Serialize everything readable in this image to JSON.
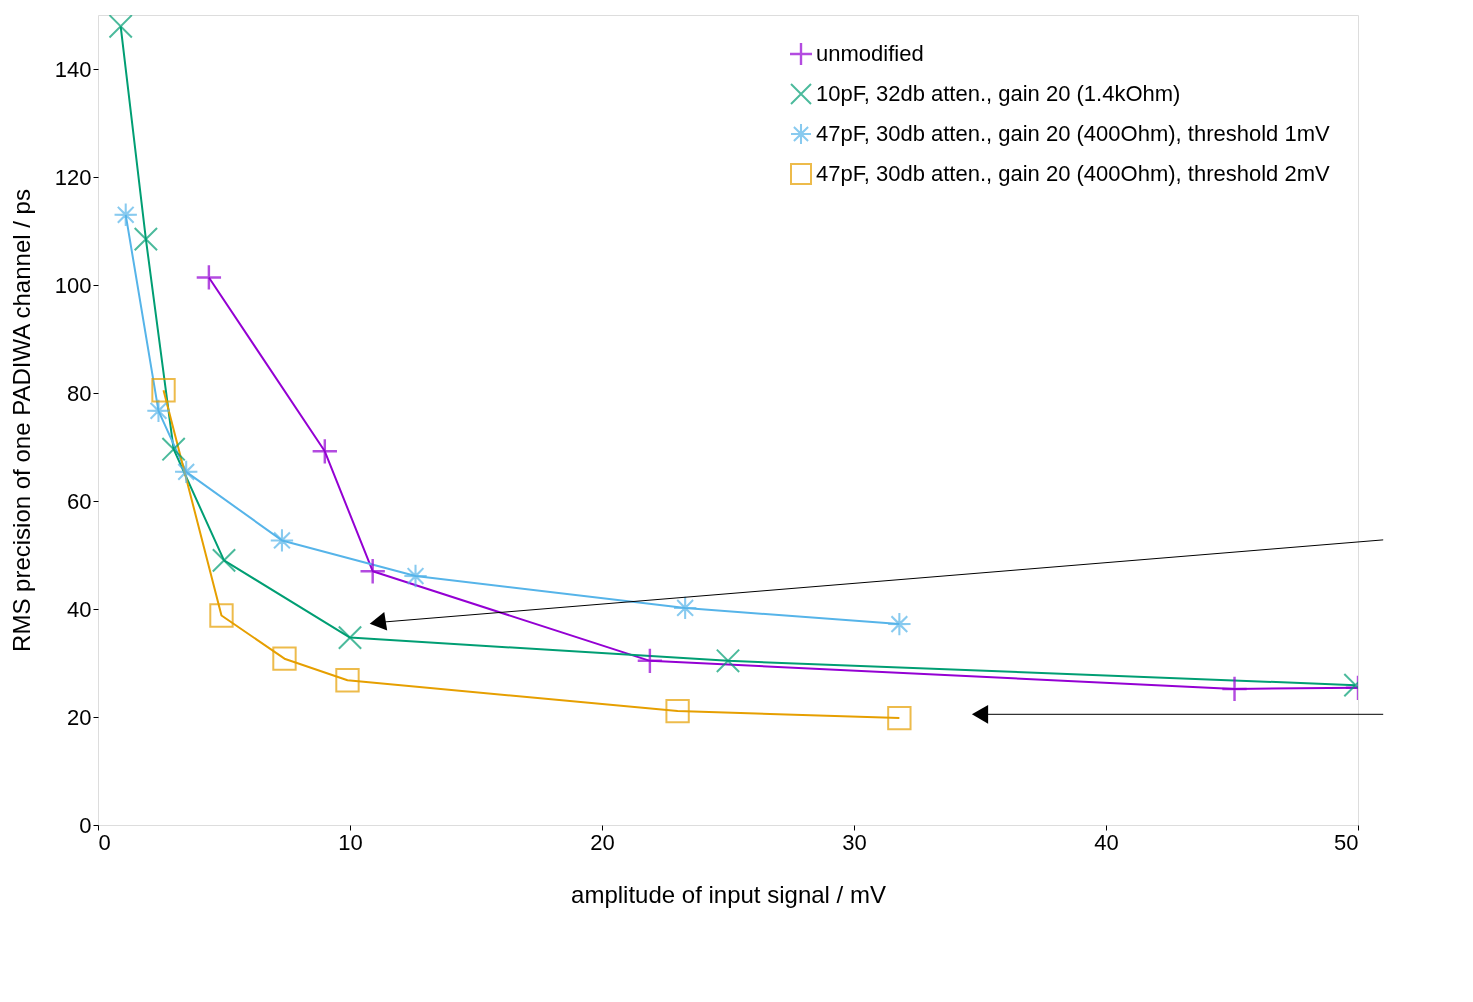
{
  "chart_data": {
    "type": "line",
    "xlabel": "amplitude of input signal / mV",
    "ylabel": "RMS precision of one PADIWA channel / ps",
    "xlim": [
      0,
      50
    ],
    "xticks": [
      0,
      10,
      20,
      30,
      40,
      50
    ],
    "ylim": [
      0,
      150
    ],
    "yticks": [
      0,
      20,
      40,
      60,
      80,
      100,
      120,
      140
    ],
    "grid": false,
    "legend": "top right",
    "series": [
      {
        "name": "unmodified",
        "color": "#9400d3",
        "marker": "cross",
        "x": [
          4.4,
          9.0,
          10.9,
          21.9,
          45.1,
          50
        ],
        "values": [
          101.4,
          69.2,
          47.0,
          30.4,
          25.2,
          25.4
        ]
      },
      {
        "name": "10pF, 32db atten., gain 20 (1.4kOhm)",
        "color": "#009e73",
        "marker": "x",
        "x": [
          0.9,
          1.9,
          3.0,
          5.0,
          10.0,
          25.0,
          49.9
        ],
        "values": [
          147.9,
          108.5,
          69.6,
          49.0,
          34.7,
          30.4,
          25.9
        ]
      },
      {
        "name": "47pF, 30db atten., gain 20 (400Ohm), threshold 1mV",
        "color": "#56b4e9",
        "marker": "star",
        "x": [
          1.1,
          2.4,
          3.5,
          7.3,
          12.6,
          23.3,
          31.8
        ],
        "values": [
          113.0,
          76.7,
          65.4,
          52.7,
          46.1,
          40.2,
          37.2
        ]
      },
      {
        "name": "47pF, 30db atten., gain 20 (400Ohm), threshold 2mV",
        "color": "#e69f00",
        "marker": "square",
        "x": [
          2.6,
          4.9,
          7.4,
          9.9,
          23.0,
          31.8
        ],
        "values": [
          80.5,
          38.8,
          30.8,
          26.8,
          21.1,
          19.8
        ]
      }
    ]
  }
}
